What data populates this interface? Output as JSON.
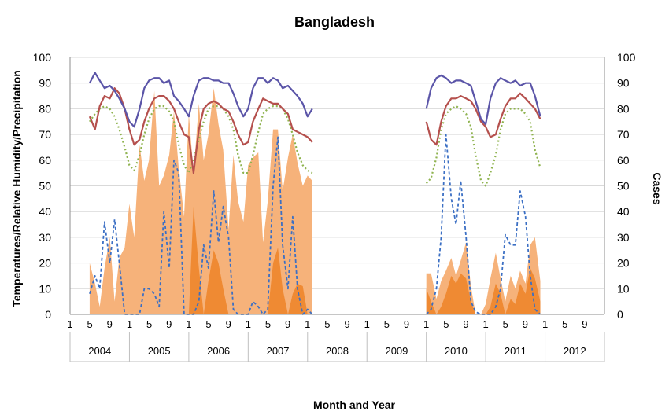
{
  "chart_data": {
    "type": "line",
    "title": "Bangladesh",
    "xlabel": "Month and Year",
    "ylabel_left": "Temperatures/Relative Humidity/Precipitation",
    "ylabel_right": "Cases",
    "ylim": [
      0,
      100
    ],
    "y2lim": [
      0,
      100
    ],
    "yticks": [
      "0",
      "10",
      "20",
      "30",
      "40",
      "50",
      "60",
      "70",
      "80",
      "90",
      "100"
    ],
    "years": [
      "2004",
      "2005",
      "2006",
      "2007",
      "2008",
      "2009",
      "2010",
      "2011",
      "2012"
    ],
    "month_tick_labels": [
      "1",
      "5",
      "9"
    ],
    "grid": true,
    "colors": {
      "humidity": "#5b55a8",
      "max_temp": "#b5504d",
      "min_temp": "#8fb34f",
      "cases": "#3b6fc4",
      "precip_light": "#f6b27a",
      "precip_dark": "#ef8a33"
    },
    "series": [
      {
        "key": "humidity",
        "style": "solid",
        "segments": [
          {
            "x": [
              2004.33,
              2004.42,
              2004.5,
              2004.58,
              2004.67,
              2004.75,
              2004.83,
              2004.92,
              2005.0,
              2005.08,
              2005.17,
              2005.25,
              2005.33,
              2005.42,
              2005.5,
              2005.58,
              2005.67,
              2005.75,
              2005.83,
              2005.92,
              2006.0,
              2006.08,
              2006.17,
              2006.25,
              2006.33,
              2006.42,
              2006.5,
              2006.58,
              2006.67,
              2006.75,
              2006.83,
              2006.92,
              2007.0,
              2007.08,
              2007.17,
              2007.25,
              2007.33,
              2007.42,
              2007.5,
              2007.58,
              2007.67,
              2007.75,
              2007.83,
              2007.92,
              2008.0,
              2008.08
            ],
            "y": [
              90,
              94,
              91,
              88,
              89,
              87,
              84,
              80,
              75,
              73,
              80,
              88,
              91,
              92,
              92,
              90,
              91,
              85,
              83,
              80,
              77,
              85,
              91,
              92,
              92,
              91,
              91,
              90,
              90,
              86,
              81,
              77,
              80,
              88,
              92,
              92,
              90,
              92,
              91,
              88,
              89,
              87,
              85,
              82,
              77,
              80
            ]
          },
          {
            "x": [
              2010.0,
              2010.08,
              2010.17,
              2010.25,
              2010.33,
              2010.42,
              2010.5,
              2010.58,
              2010.67,
              2010.75,
              2010.83,
              2010.92,
              2011.0,
              2011.08,
              2011.17,
              2011.25,
              2011.33,
              2011.42,
              2011.5,
              2011.58,
              2011.67,
              2011.75,
              2011.83,
              2011.92
            ],
            "y": [
              80,
              88,
              92,
              93,
              92,
              90,
              91,
              91,
              90,
              89,
              83,
              76,
              74,
              84,
              90,
              92,
              91,
              90,
              91,
              89,
              90,
              90,
              85,
              77
            ]
          }
        ]
      },
      {
        "key": "max_temp",
        "style": "solid",
        "segments": [
          {
            "x": [
              2004.33,
              2004.42,
              2004.5,
              2004.58,
              2004.67,
              2004.75,
              2004.83,
              2004.92,
              2005.0,
              2005.08,
              2005.17,
              2005.25,
              2005.33,
              2005.42,
              2005.5,
              2005.58,
              2005.67,
              2005.75,
              2005.83,
              2005.92,
              2006.0,
              2006.08,
              2006.17,
              2006.25,
              2006.33,
              2006.42,
              2006.5,
              2006.58,
              2006.67,
              2006.75,
              2006.83,
              2006.92,
              2007.0,
              2007.08,
              2007.17,
              2007.25,
              2007.33,
              2007.42,
              2007.5,
              2007.58,
              2007.67,
              2007.75,
              2007.83,
              2007.92,
              2008.0,
              2008.08
            ],
            "y": [
              77,
              72,
              81,
              85,
              84,
              88,
              86,
              80,
              72,
              66,
              68,
              75,
              80,
              84,
              85,
              85,
              83,
              80,
              75,
              70,
              69,
              55,
              72,
              80,
              82,
              83,
              82,
              80,
              79,
              75,
              70,
              66,
              67,
              75,
              80,
              84,
              83,
              82,
              82,
              80,
              78,
              72,
              71,
              70,
              69,
              67
            ]
          },
          {
            "x": [
              2010.0,
              2010.08,
              2010.17,
              2010.25,
              2010.33,
              2010.42,
              2010.5,
              2010.58,
              2010.67,
              2010.75,
              2010.83,
              2010.92,
              2011.0,
              2011.08,
              2011.17,
              2011.25,
              2011.33,
              2011.42,
              2011.5,
              2011.58,
              2011.67,
              2011.75,
              2011.83,
              2011.92
            ],
            "y": [
              75,
              68,
              66,
              75,
              81,
              84,
              84,
              85,
              84,
              83,
              80,
              75,
              73,
              69,
              70,
              76,
              81,
              84,
              84,
              86,
              84,
              82,
              80,
              76
            ]
          }
        ]
      },
      {
        "key": "min_temp",
        "style": "dotted",
        "segments": [
          {
            "x": [
              2004.33,
              2004.42,
              2004.5,
              2004.58,
              2004.67,
              2004.75,
              2004.83,
              2004.92,
              2005.0,
              2005.08,
              2005.17,
              2005.25,
              2005.33,
              2005.42,
              2005.5,
              2005.58,
              2005.67,
              2005.75,
              2005.83,
              2005.92,
              2006.0,
              2006.08,
              2006.17,
              2006.25,
              2006.33,
              2006.42,
              2006.5,
              2006.58,
              2006.67,
              2006.75,
              2006.83,
              2006.92,
              2007.0,
              2007.08,
              2007.17,
              2007.25,
              2007.33,
              2007.42,
              2007.5,
              2007.58,
              2007.67,
              2007.75,
              2007.83,
              2007.92,
              2008.0,
              2008.08
            ],
            "y": [
              75,
              78,
              80,
              81,
              80,
              77,
              72,
              65,
              58,
              56,
              62,
              70,
              76,
              80,
              81,
              81,
              79,
              75,
              66,
              58,
              55,
              60,
              68,
              75,
              80,
              81,
              81,
              80,
              77,
              72,
              62,
              55,
              55,
              62,
              71,
              78,
              80,
              81,
              81,
              80,
              76,
              70,
              63,
              58,
              56,
              55
            ]
          },
          {
            "x": [
              2010.0,
              2010.08,
              2010.17,
              2010.25,
              2010.33,
              2010.42,
              2010.5,
              2010.58,
              2010.67,
              2010.75,
              2010.83,
              2010.92,
              2011.0,
              2011.08,
              2011.17,
              2011.25,
              2011.33,
              2011.42,
              2011.5,
              2011.58,
              2011.67,
              2011.75,
              2011.83,
              2011.92
            ],
            "y": [
              51,
              53,
              61,
              72,
              78,
              80,
              81,
              80,
              78,
              73,
              62,
              52,
              50,
              55,
              62,
              72,
              78,
              80,
              80,
              80,
              78,
              75,
              64,
              57
            ]
          }
        ]
      },
      {
        "key": "cases",
        "style": "dashed",
        "segments": [
          {
            "x": [
              2004.33,
              2004.42,
              2004.5,
              2004.58,
              2004.67,
              2004.75,
              2004.83,
              2004.92,
              2005.0,
              2005.08,
              2005.17,
              2005.25,
              2005.33,
              2005.42,
              2005.5,
              2005.58,
              2005.67,
              2005.75,
              2005.83,
              2005.92,
              2006.0,
              2006.08,
              2006.17,
              2006.25,
              2006.33,
              2006.42,
              2006.5,
              2006.58,
              2006.67,
              2006.75,
              2006.83,
              2006.92,
              2007.0,
              2007.08,
              2007.17,
              2007.25,
              2007.33,
              2007.42,
              2007.5,
              2007.58,
              2007.67,
              2007.75,
              2007.83,
              2007.92,
              2008.0,
              2008.08
            ],
            "y": [
              8,
              15,
              10,
              36,
              20,
              37,
              20,
              0,
              0,
              0,
              0,
              10,
              10,
              8,
              3,
              40,
              18,
              60,
              55,
              0,
              0,
              0,
              5,
              27,
              18,
              48,
              28,
              42,
              30,
              2,
              0,
              0,
              0,
              5,
              3,
              0,
              2,
              50,
              69,
              27,
              10,
              38,
              10,
              0,
              2,
              0
            ]
          },
          {
            "x": [
              2010.0,
              2010.08,
              2010.17,
              2010.25,
              2010.33,
              2010.42,
              2010.5,
              2010.58,
              2010.67,
              2010.75,
              2010.83,
              2010.92,
              2011.0,
              2011.08,
              2011.17,
              2011.25,
              2011.33,
              2011.42,
              2011.5,
              2011.58,
              2011.67,
              2011.75,
              2011.83,
              2011.92
            ],
            "y": [
              0,
              2,
              10,
              30,
              70,
              45,
              35,
              52,
              30,
              5,
              1,
              0,
              0,
              0,
              3,
              10,
              31,
              27,
              27,
              48,
              38,
              15,
              2,
              0
            ]
          }
        ]
      },
      {
        "key": "precip_light",
        "style": "area",
        "segments": [
          {
            "x": [
              2004.33,
              2004.42,
              2004.5,
              2004.58,
              2004.67,
              2004.75,
              2004.83,
              2004.92,
              2005.0,
              2005.08,
              2005.17,
              2005.25,
              2005.33,
              2005.42,
              2005.5,
              2005.58,
              2005.67,
              2005.75,
              2005.83,
              2005.92,
              2006.0,
              2006.08,
              2006.17,
              2006.25,
              2006.33,
              2006.42,
              2006.5,
              2006.58,
              2006.67,
              2006.75,
              2006.83,
              2006.92,
              2007.0,
              2007.08,
              2007.17,
              2007.25,
              2007.33,
              2007.42,
              2007.5,
              2007.58,
              2007.67,
              2007.75,
              2007.83,
              2007.92,
              2008.0,
              2008.08
            ],
            "y": [
              20,
              12,
              3,
              18,
              30,
              5,
              22,
              26,
              43,
              30,
              66,
              52,
              60,
              87,
              50,
              54,
              62,
              79,
              57,
              38,
              78,
              55,
              82,
              60,
              70,
              88,
              74,
              64,
              33,
              62,
              44,
              36,
              58,
              61,
              63,
              28,
              44,
              72,
              72,
              48,
              61,
              70,
              59,
              50,
              54,
              52
            ]
          },
          {
            "x": [
              2010.0,
              2010.08,
              2010.17,
              2010.25,
              2010.33,
              2010.42,
              2010.5,
              2010.58,
              2010.67,
              2010.75,
              2010.83,
              2010.92,
              2011.0,
              2011.08,
              2011.17,
              2011.25,
              2011.33,
              2011.42,
              2011.5,
              2011.58,
              2011.67,
              2011.75,
              2011.83,
              2011.92
            ],
            "y": [
              16,
              16,
              6,
              13,
              17,
              22,
              15,
              21,
              28,
              11,
              0,
              0,
              4,
              14,
              24,
              14,
              5,
              15,
              10,
              17,
              12,
              27,
              30,
              13
            ]
          }
        ]
      },
      {
        "key": "precip_dark",
        "style": "area",
        "segments": [
          {
            "x": [
              2004.33,
              2004.42,
              2004.5,
              2004.58,
              2004.67,
              2004.75,
              2004.83,
              2004.92,
              2005.0,
              2005.08,
              2005.17,
              2005.25,
              2005.33,
              2005.42,
              2005.5,
              2005.58,
              2005.67,
              2005.75,
              2005.83,
              2005.92,
              2006.0,
              2006.08,
              2006.17,
              2006.25,
              2006.33,
              2006.42,
              2006.5,
              2006.58,
              2006.67,
              2006.75,
              2006.83,
              2006.92,
              2007.0,
              2007.08,
              2007.17,
              2007.25,
              2007.33,
              2007.42,
              2007.5,
              2007.58,
              2007.67,
              2007.75,
              2007.83,
              2007.92,
              2008.0,
              2008.08
            ],
            "y": [
              0,
              0,
              0,
              0,
              0,
              0,
              0,
              0,
              0,
              0,
              0,
              0,
              0,
              0,
              0,
              0,
              0,
              0,
              0,
              0,
              0,
              42,
              18,
              0,
              13,
              25,
              20,
              10,
              0,
              0,
              0,
              0,
              0,
              0,
              0,
              0,
              0,
              20,
              26,
              10,
              0,
              8,
              12,
              11,
              0,
              0
            ]
          },
          {
            "x": [
              2010.0,
              2010.08,
              2010.17,
              2010.25,
              2010.33,
              2010.42,
              2010.5,
              2010.58,
              2010.67,
              2010.75,
              2010.83,
              2010.92,
              2011.0,
              2011.08,
              2011.17,
              2011.25,
              2011.33,
              2011.42,
              2011.5,
              2011.58,
              2011.67,
              2011.75,
              2011.83,
              2011.92
            ],
            "y": [
              10,
              5,
              0,
              3,
              8,
              15,
              12,
              16,
              14,
              5,
              0,
              0,
              0,
              3,
              12,
              8,
              0,
              6,
              4,
              12,
              8,
              18,
              14,
              5
            ]
          }
        ]
      }
    ]
  }
}
